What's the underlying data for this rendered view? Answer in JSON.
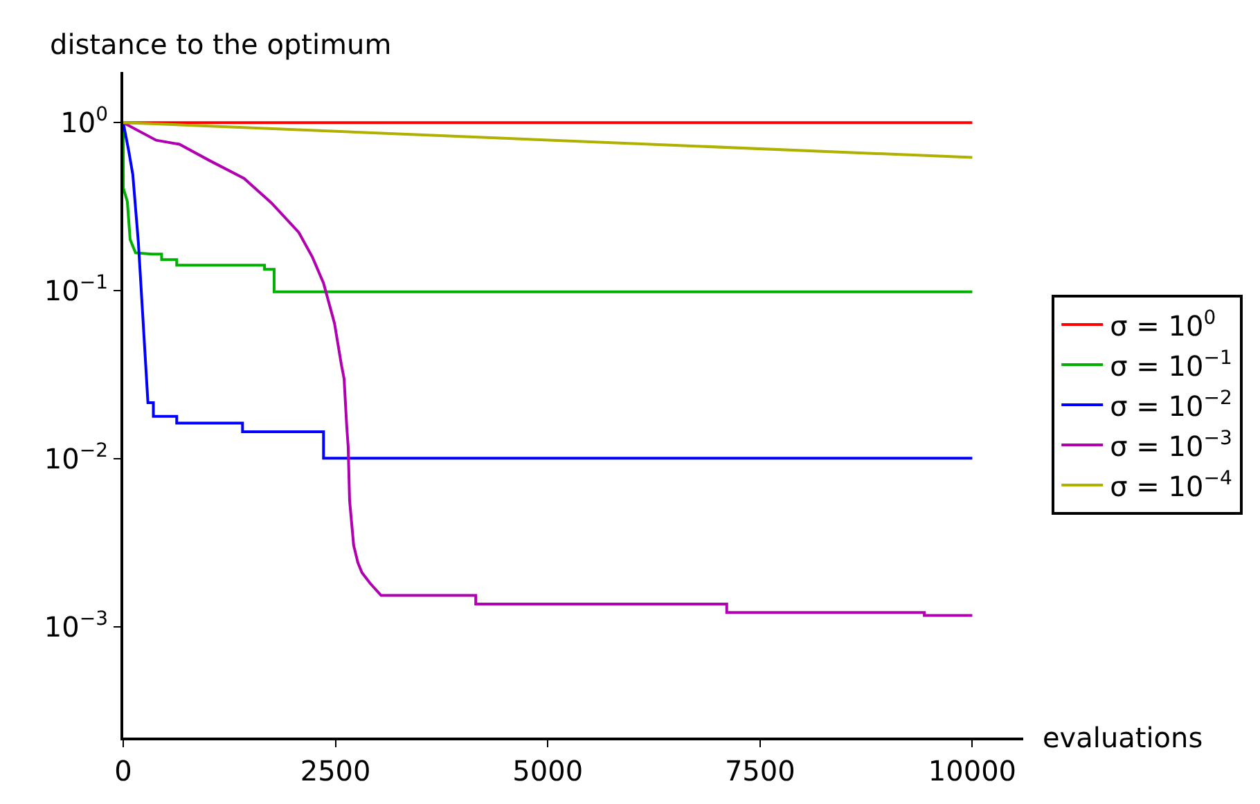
{
  "chart_data": {
    "type": "line",
    "xlabel": "evaluations",
    "ylabel": "distance to the optimum",
    "log": "y",
    "legend": "right",
    "marker": "none",
    "line_style": "solid",
    "xlim": [
      0,
      10600
    ],
    "ylim": [
      0.00022,
      2
    ],
    "xticks": [
      0,
      2500,
      5000,
      7500,
      10000
    ],
    "yticks": [
      {
        "value": 1,
        "label": "10$^{0}$"
      },
      {
        "value": 0.1,
        "label": "10$^{−1}$"
      },
      {
        "value": 0.01,
        "label": "10$^{−2}$"
      },
      {
        "value": 0.001,
        "label": "10$^{−3}$"
      }
    ],
    "series": [
      {
        "name": "σ = 10$^{0}$",
        "color": "#ff0000",
        "x": [
          0,
          10000
        ],
        "values": [
          1,
          1
        ]
      },
      {
        "name": "σ = 10$^{−1}$",
        "color": "#00b000",
        "x": [
          0,
          0,
          48,
          81,
          145,
          339,
          452,
          452,
          630,
          630,
          1664,
          1664,
          1777,
          1777,
          10000
        ],
        "values": [
          1,
          0.409,
          0.34,
          0.202,
          0.168,
          0.165,
          0.165,
          0.153,
          0.153,
          0.142,
          0.142,
          0.134,
          0.134,
          0.0985,
          0.0985
        ]
      },
      {
        "name": "σ = 10$^{−2}$",
        "color": "#0000ff",
        "x": [
          0,
          65,
          113,
          178,
          226,
          291,
          355,
          355,
          630,
          630,
          1405,
          1405,
          2359,
          2359,
          10000
        ],
        "values": [
          1,
          0.676,
          0.49,
          0.194,
          0.077,
          0.0216,
          0.0216,
          0.0179,
          0.0179,
          0.0163,
          0.0163,
          0.0145,
          0.0145,
          0.0101,
          0.0101
        ]
      },
      {
        "name": "σ = 10$^{−3}$",
        "color": "#b000b0",
        "x": [
          0,
          388,
          662,
          1018,
          1422,
          1745,
          2068,
          2229,
          2359,
          2488,
          2569,
          2601,
          2633,
          2649,
          2666,
          2714,
          2763,
          2811,
          2908,
          3037,
          4152,
          4152,
          7108,
          7108,
          9435,
          9435,
          10000
        ],
        "values": [
          1,
          0.785,
          0.743,
          0.594,
          0.466,
          0.333,
          0.222,
          0.158,
          0.111,
          0.064,
          0.0364,
          0.03,
          0.0154,
          0.0119,
          0.00566,
          0.00306,
          0.00242,
          0.00211,
          0.00182,
          0.00154,
          0.00154,
          0.00137,
          0.00137,
          0.00122,
          0.00122,
          0.00117,
          0.00117
        ]
      },
      {
        "name": "σ = 10$^{−4}$",
        "color": "#b0b000",
        "x": [
          0,
          10000
        ],
        "values": [
          1,
          0.62
        ]
      }
    ]
  }
}
